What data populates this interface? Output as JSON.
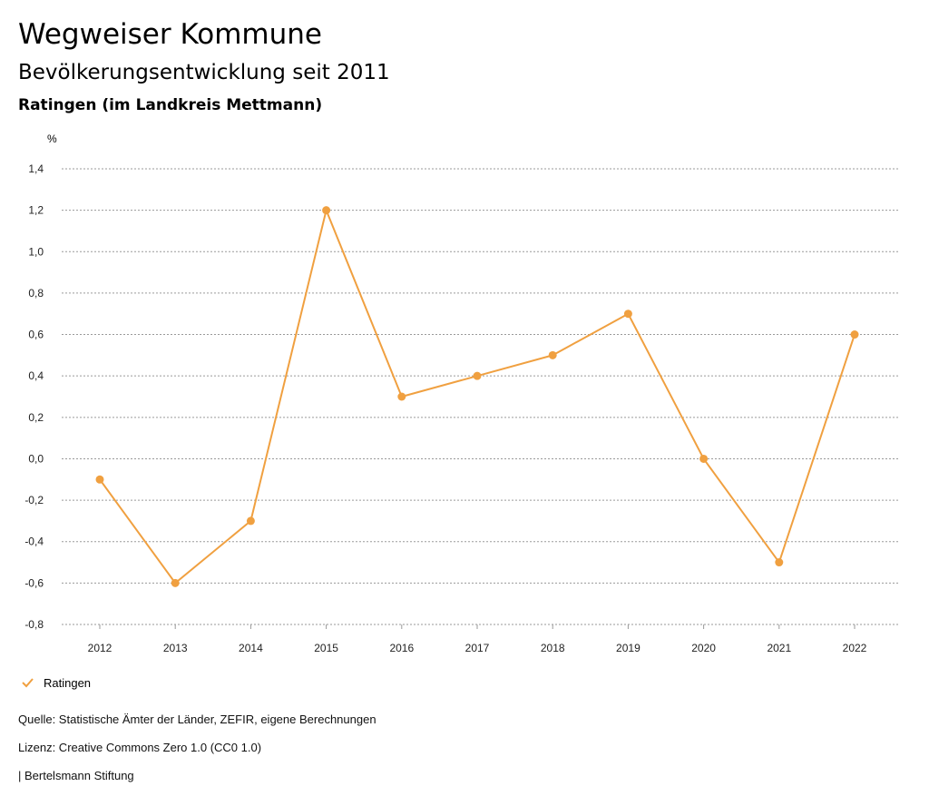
{
  "header": {
    "title": "Wegweiser Kommune",
    "subtitle": "Bevölkerungsentwicklung seit 2011",
    "region": "Ratingen (im Landkreis Mettmann)"
  },
  "footer": {
    "source": "Quelle: Statistische Ämter der Länder, ZEFIR, eigene Berechnungen",
    "license": "Lizenz: Creative Commons Zero 1.0 (CC0 1.0)",
    "credit": "| Bertelsmann Stiftung"
  },
  "chart_data": {
    "type": "line",
    "unit_label": "%",
    "x": [
      "2012",
      "2013",
      "2014",
      "2015",
      "2016",
      "2017",
      "2018",
      "2019",
      "2020",
      "2021",
      "2022"
    ],
    "series": [
      {
        "name": "Ratingen",
        "values": [
          -0.1,
          -0.6,
          -0.3,
          1.2,
          0.3,
          0.4,
          0.5,
          0.7,
          0.0,
          -0.5,
          0.6
        ],
        "color": "#f0a040"
      }
    ],
    "y_ticks": [
      "1,4",
      "1,2",
      "1,0",
      "0,8",
      "0,6",
      "0,4",
      "0,2",
      "0,0",
      "-0,2",
      "-0,4",
      "-0,6",
      "-0,8"
    ],
    "ylim": [
      -0.8,
      1.4
    ],
    "grid": true,
    "legend_position": "bottom-left"
  }
}
